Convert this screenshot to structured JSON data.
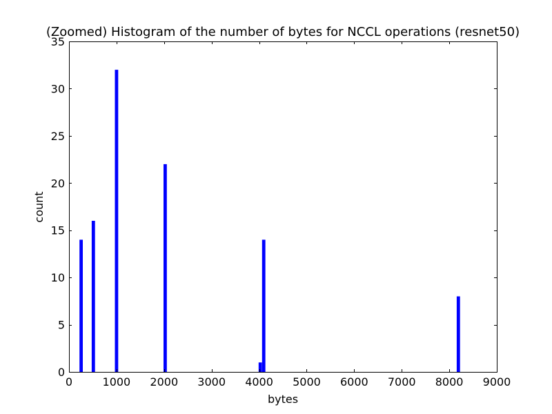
{
  "chart_data": {
    "type": "bar",
    "title": "(Zoomed) Histogram of the number of bytes for NCCL operations (resnet50)",
    "xlabel": "bytes",
    "ylabel": "count",
    "xlim": [
      0,
      9000
    ],
    "ylim": [
      0,
      35
    ],
    "bin_width": 70,
    "xticks": [
      0,
      1000,
      2000,
      3000,
      4000,
      5000,
      6000,
      7000,
      8000,
      9000
    ],
    "yticks": [
      0,
      5,
      10,
      15,
      20,
      25,
      30,
      35
    ],
    "grid": false,
    "bar_color": "#0000ff",
    "bins": [
      {
        "x": 256,
        "count": 14
      },
      {
        "x": 512,
        "count": 16
      },
      {
        "x": 1000,
        "count": 32
      },
      {
        "x": 2024,
        "count": 22
      },
      {
        "x": 4024,
        "count": 1
      },
      {
        "x": 4096,
        "count": 14
      },
      {
        "x": 8192,
        "count": 8
      }
    ]
  }
}
